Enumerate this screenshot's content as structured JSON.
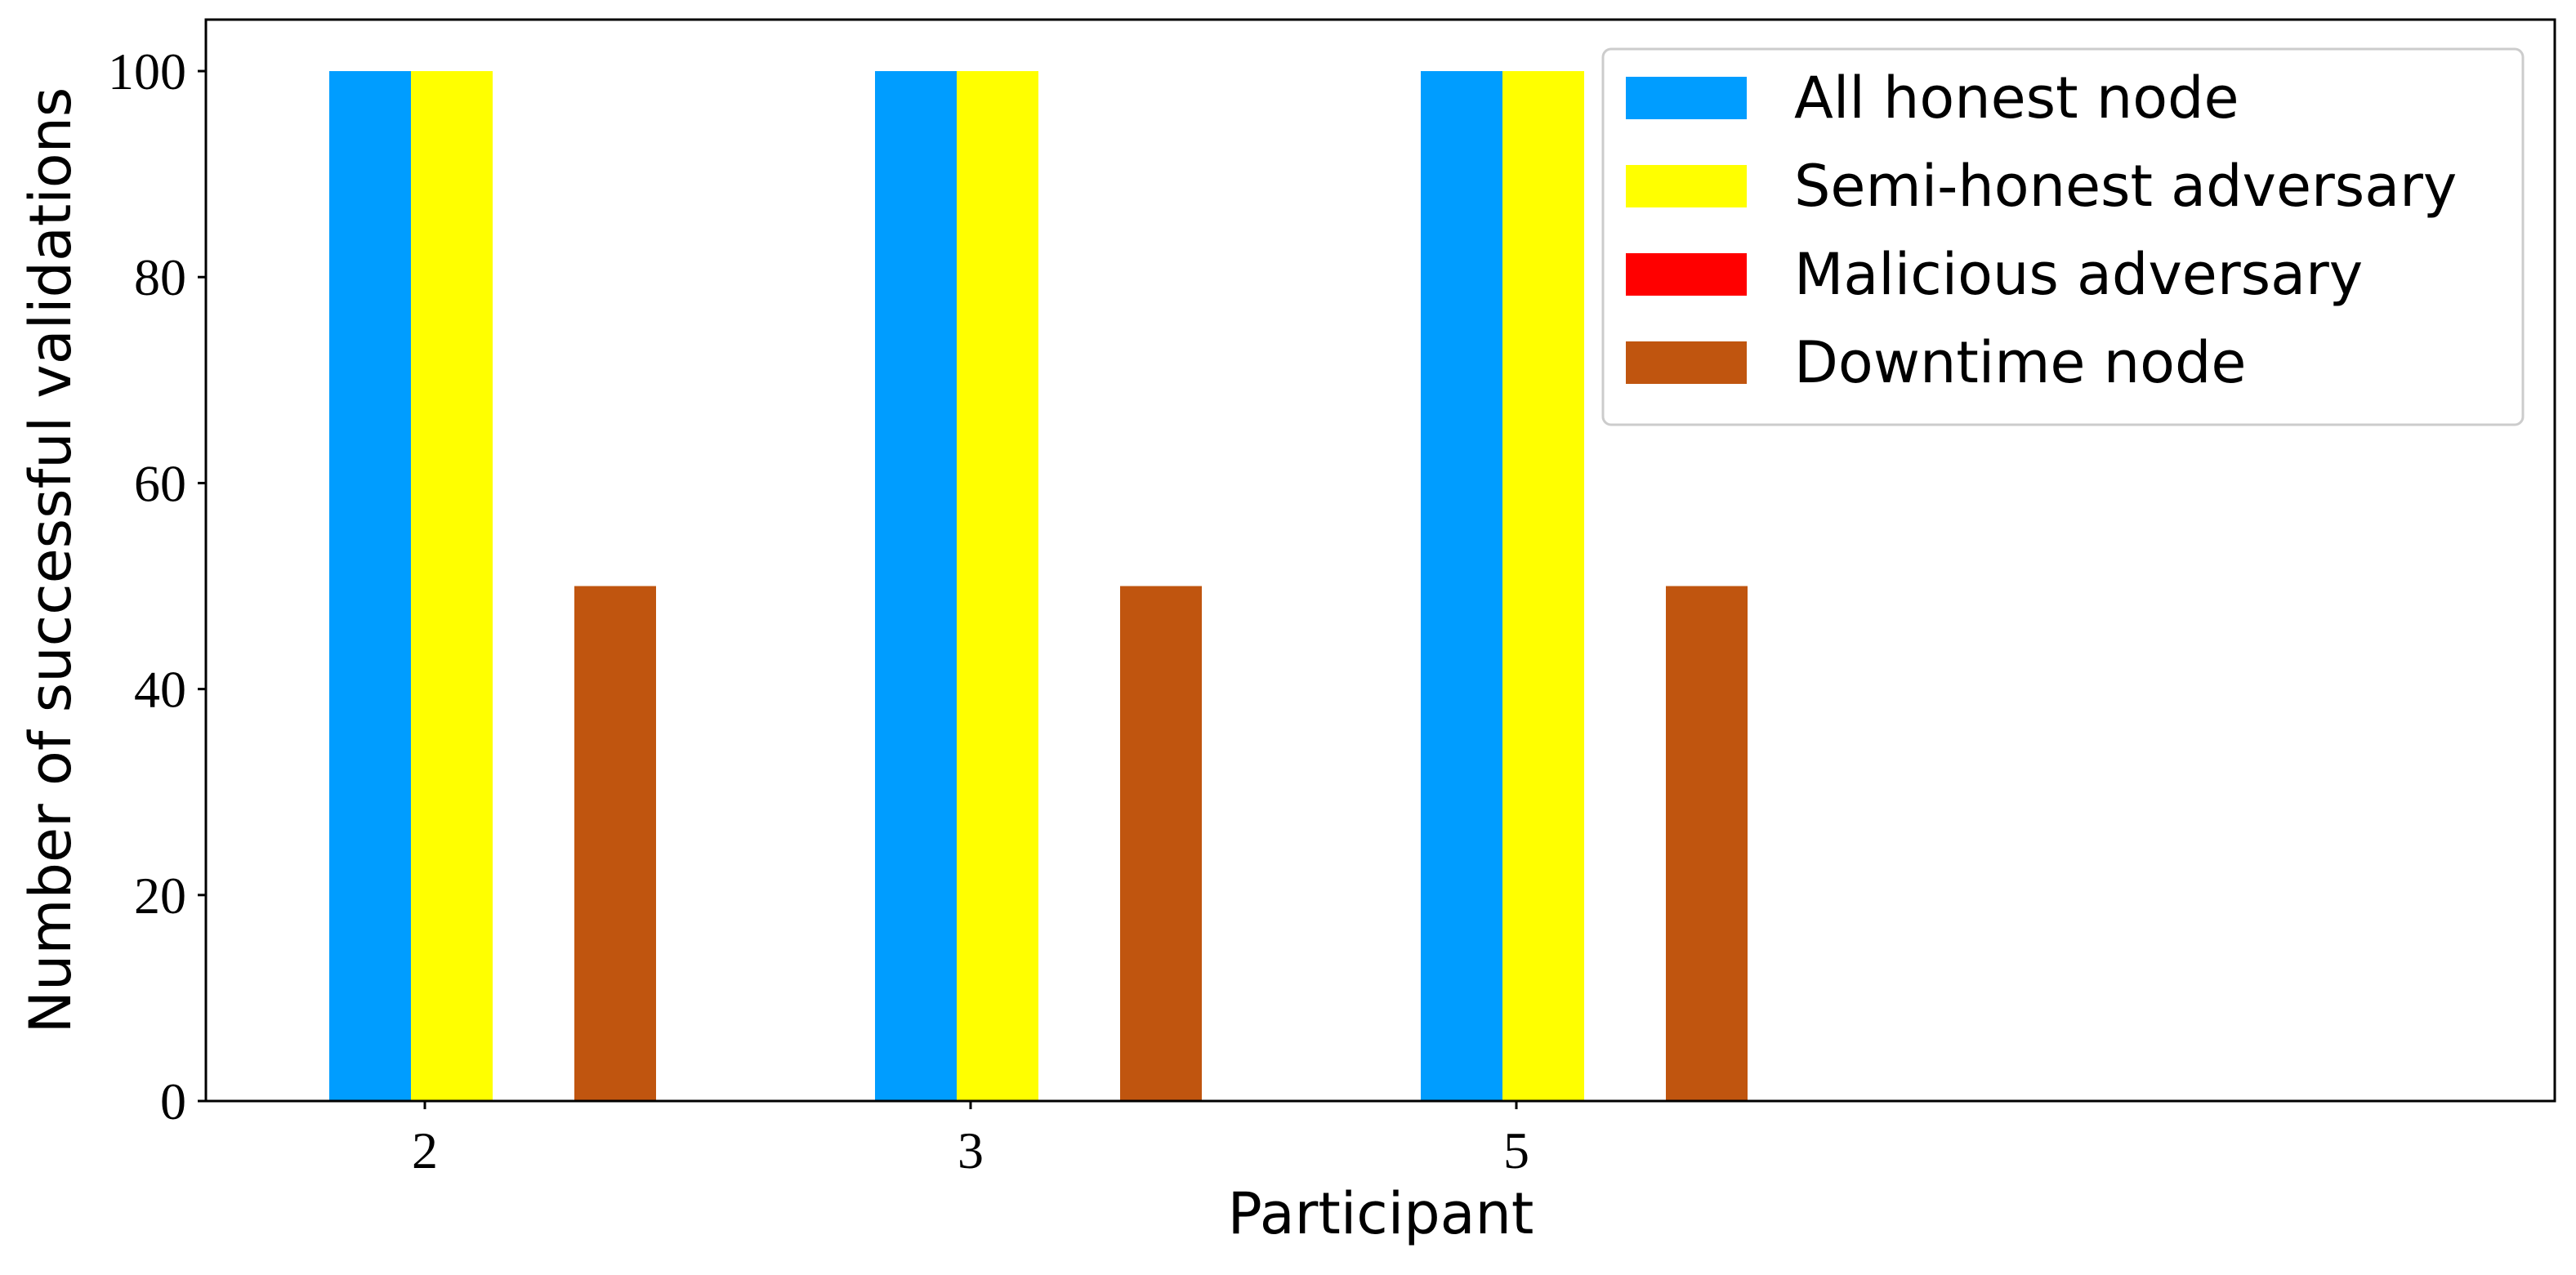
{
  "chart_data": {
    "type": "bar",
    "title": "",
    "xlabel": "Participant",
    "ylabel": "Number of successful validations",
    "categories": [
      "2",
      "3",
      "5"
    ],
    "ylim": [
      0,
      105
    ],
    "yticks": [
      "0",
      "20",
      "40",
      "60",
      "80",
      "100"
    ],
    "series": [
      {
        "name": "All honest node",
        "color": "#009dff",
        "values": [
          100,
          100,
          100
        ]
      },
      {
        "name": "Semi-honest adversary",
        "color": "#ffff00",
        "values": [
          100,
          100,
          100
        ]
      },
      {
        "name": "Malicious adversary",
        "color": "#ff0000",
        "values": [
          0,
          0,
          0
        ]
      },
      {
        "name": "Downtime node",
        "color": "#c0550f",
        "values": [
          50,
          50,
          50
        ]
      }
    ],
    "legend_position": "top-right",
    "grid": false
  }
}
